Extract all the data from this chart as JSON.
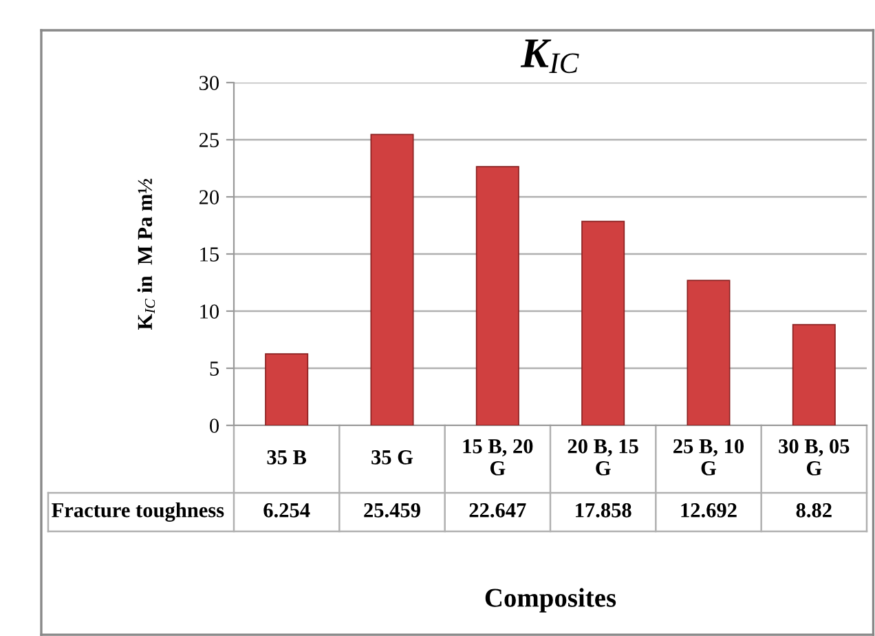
{
  "chart_data": {
    "type": "bar",
    "title": "K$_{IC}$",
    "ylabel": "K$_{IC}$ in  M Pa m½",
    "xlabel": "Composites",
    "categories": [
      "35 B",
      "35 G",
      "15 B, 20 G",
      "20 B, 15 G",
      "25 B, 10 G",
      "30 B, 05 G"
    ],
    "series": [
      {
        "name": "Fracture toughness",
        "color": "#d04040",
        "values": [
          6.254,
          25.459,
          22.647,
          17.858,
          12.692,
          8.82
        ]
      }
    ],
    "ylim": [
      0,
      30
    ],
    "yticks": [
      0,
      5,
      10,
      15,
      20,
      25,
      30
    ],
    "grid": "y",
    "data_labels": true,
    "legend": false
  }
}
